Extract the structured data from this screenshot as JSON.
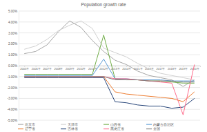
{
  "chart_data": {
    "type": "line",
    "title": "Population growth rate",
    "categories": [
      "2005年",
      "2006年",
      "2007年",
      "2008年",
      "2009年",
      "2010年",
      "2011年",
      "2012年",
      "2013年",
      "2014年",
      "2015年",
      "2016年",
      "2017年",
      "2018年",
      "2019年",
      "2020年"
    ],
    "ylim": [
      -5,
      5
    ],
    "yticks": [
      {
        "value": -5,
        "label": "-5.00%"
      },
      {
        "value": -4,
        "label": "-4.00%"
      },
      {
        "value": -3,
        "label": "-3.00%"
      },
      {
        "value": -2,
        "label": "-2.00%"
      },
      {
        "value": -1,
        "label": "-1.00%"
      },
      {
        "value": 0,
        "label": "0.00%"
      },
      {
        "value": 1,
        "label": "1.00%"
      },
      {
        "value": 2,
        "label": "2.00%"
      },
      {
        "value": 3,
        "label": "3.00%"
      },
      {
        "value": 4,
        "label": "4.00%"
      },
      {
        "value": 5,
        "label": "5.00%"
      }
    ],
    "grid": true,
    "legend": "bottom",
    "series": [
      {
        "name": "北京市",
        "color": "#a5a5a5",
        "values": [
          1.1,
          1.3,
          1.9,
          3.1,
          4.1,
          3.5,
          2.3,
          1.3,
          0.5,
          0.1,
          -0.5,
          -0.9,
          -1.1,
          -1.3,
          -1.9,
          -1.3
        ]
      },
      {
        "name": "天津市",
        "color": "#d0d0d0",
        "values": [
          1.5,
          1.8,
          2.4,
          3.2,
          3.7,
          4.1,
          3.4,
          1.6,
          1.2,
          0.8,
          0.2,
          -0.3,
          -0.7,
          -0.9,
          -1.1,
          -1.3
        ]
      },
      {
        "name": "山西省",
        "color": "#70ad47",
        "values": [
          -0.8,
          -0.8,
          -0.8,
          -0.8,
          -0.8,
          -0.8,
          -0.8,
          2.8,
          -1.2,
          -1.3,
          -1.3,
          -1.4,
          -1.4,
          -1.5,
          -1.6,
          -1.6
        ]
      },
      {
        "name": "内蒙古自治区",
        "color": "#5b9bd5",
        "values": [
          -0.9,
          -0.9,
          -0.9,
          -0.9,
          -0.9,
          -0.9,
          -0.9,
          0.6,
          -1.2,
          -1.2,
          -1.3,
          -1.3,
          -1.3,
          -1.4,
          -1.4,
          -1.4
        ]
      },
      {
        "name": "辽宁省",
        "color": "#ed7d31",
        "values": [
          -1.0,
          -1.0,
          -1.0,
          -1.0,
          -1.0,
          -1.0,
          -1.0,
          -1.0,
          -2.4,
          -2.6,
          -2.7,
          -2.8,
          -2.9,
          -3.0,
          -3.3,
          -2.4
        ]
      },
      {
        "name": "吉林省",
        "color": "#264478",
        "values": [
          -1.1,
          -1.1,
          -1.1,
          -1.1,
          -1.1,
          -1.1,
          -1.1,
          -1.1,
          -3.3,
          -3.4,
          -3.6,
          -3.7,
          -3.7,
          -3.9,
          -3.8,
          -3.0
        ]
      },
      {
        "name": "黑龙江省",
        "color": "#ff6b8b",
        "values": [
          -1.0,
          -1.0,
          -1.0,
          -1.0,
          -1.0,
          -1.0,
          -1.0,
          -1.0,
          -1.2,
          -1.2,
          -1.3,
          -1.4,
          -1.5,
          -1.6,
          -4.5,
          0.1
        ]
      },
      {
        "name": "全国",
        "color": "#7f7f7f",
        "values": [
          -1.0,
          -1.0,
          -1.0,
          -1.0,
          -1.0,
          -1.0,
          -1.0,
          -1.0,
          -1.3,
          -1.3,
          -1.3,
          -1.4,
          -1.4,
          -1.4,
          -1.5,
          -1.5
        ]
      }
    ]
  }
}
